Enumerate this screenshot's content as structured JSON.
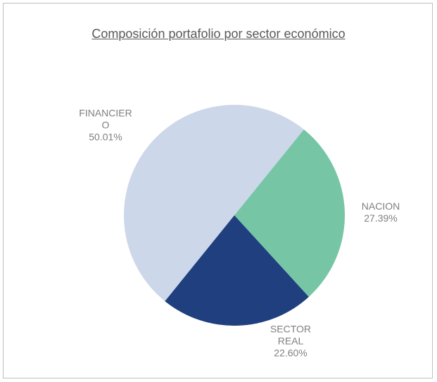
{
  "chart_data": {
    "type": "pie",
    "title": "Composición portafolio por sector económico",
    "categories": [
      "NACION",
      "SECTOR REAL",
      "FINANCIERO"
    ],
    "values": [
      27.39,
      22.6,
      50.01
    ],
    "value_labels": [
      "27.39%",
      "22.60%",
      "50.01%"
    ],
    "colors": [
      "#76c6a5",
      "#1f3f7e",
      "#cdd7ea"
    ]
  }
}
